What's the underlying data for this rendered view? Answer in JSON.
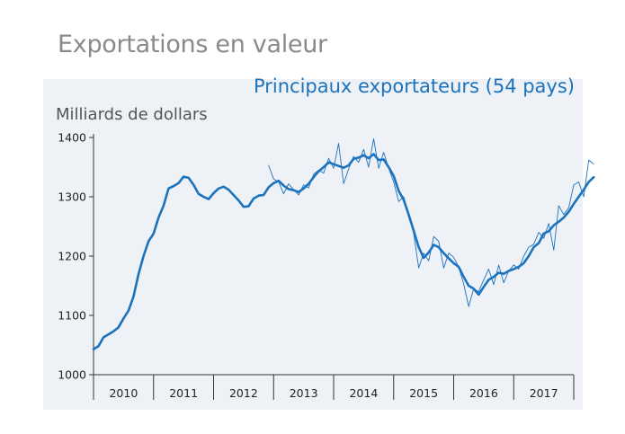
{
  "heading": "Exportations en valeur",
  "chart_data": {
    "type": "line",
    "title": "Principaux exportateurs (54 pays)",
    "ylabel": "Milliards de dollars",
    "xlabel": "",
    "ylim": [
      1000,
      1400
    ],
    "yticks": [
      1000,
      1100,
      1200,
      1300,
      1400
    ],
    "x_categories": [
      "2010",
      "2011",
      "2012",
      "2013",
      "2014",
      "2015",
      "2016",
      "2017"
    ],
    "xlim": [
      2010.0,
      2018.0
    ],
    "grid": false,
    "legend": "none",
    "series": [
      {
        "style": "thin",
        "color": "#1b73bd",
        "points": [
          [
            2012.917,
            1353
          ],
          [
            2013.0,
            1330
          ],
          [
            2013.083,
            1325
          ],
          [
            2013.167,
            1305
          ],
          [
            2013.25,
            1322
          ],
          [
            2013.333,
            1312
          ],
          [
            2013.417,
            1303
          ],
          [
            2013.5,
            1320
          ],
          [
            2013.583,
            1315
          ],
          [
            2013.667,
            1338
          ],
          [
            2013.75,
            1345
          ],
          [
            2013.833,
            1340
          ],
          [
            2013.917,
            1365
          ],
          [
            2014.0,
            1348
          ],
          [
            2014.083,
            1390
          ],
          [
            2014.167,
            1322
          ],
          [
            2014.25,
            1347
          ],
          [
            2014.333,
            1368
          ],
          [
            2014.417,
            1358
          ],
          [
            2014.5,
            1380
          ],
          [
            2014.583,
            1350
          ],
          [
            2014.667,
            1398
          ],
          [
            2014.75,
            1348
          ],
          [
            2014.833,
            1375
          ],
          [
            2014.917,
            1348
          ],
          [
            2015.0,
            1325
          ],
          [
            2015.083,
            1292
          ],
          [
            2015.167,
            1300
          ],
          [
            2015.25,
            1270
          ],
          [
            2015.333,
            1238
          ],
          [
            2015.417,
            1180
          ],
          [
            2015.5,
            1205
          ],
          [
            2015.583,
            1192
          ],
          [
            2015.667,
            1233
          ],
          [
            2015.75,
            1225
          ],
          [
            2015.833,
            1180
          ],
          [
            2015.917,
            1205
          ],
          [
            2016.0,
            1198
          ],
          [
            2016.083,
            1182
          ],
          [
            2016.167,
            1153
          ],
          [
            2016.25,
            1115
          ],
          [
            2016.333,
            1145
          ],
          [
            2016.417,
            1140
          ],
          [
            2016.5,
            1160
          ],
          [
            2016.583,
            1178
          ],
          [
            2016.667,
            1152
          ],
          [
            2016.75,
            1185
          ],
          [
            2016.833,
            1155
          ],
          [
            2016.917,
            1175
          ],
          [
            2017.0,
            1185
          ],
          [
            2017.083,
            1178
          ],
          [
            2017.167,
            1200
          ],
          [
            2017.25,
            1215
          ],
          [
            2017.333,
            1220
          ],
          [
            2017.417,
            1240
          ],
          [
            2017.5,
            1230
          ],
          [
            2017.583,
            1255
          ],
          [
            2017.667,
            1210
          ],
          [
            2017.75,
            1285
          ],
          [
            2017.833,
            1270
          ],
          [
            2017.917,
            1282
          ],
          [
            2018.0,
            1320
          ],
          [
            2018.083,
            1325
          ],
          [
            2018.167,
            1300
          ],
          [
            2018.25,
            1362
          ],
          [
            2018.333,
            1355
          ]
        ]
      },
      {
        "style": "thick",
        "color": "#1b73bd",
        "points": [
          [
            2010.0,
            1043
          ],
          [
            2010.083,
            1048
          ],
          [
            2010.167,
            1063
          ],
          [
            2010.25,
            1068
          ],
          [
            2010.333,
            1073
          ],
          [
            2010.417,
            1080
          ],
          [
            2010.5,
            1095
          ],
          [
            2010.583,
            1108
          ],
          [
            2010.667,
            1132
          ],
          [
            2010.75,
            1170
          ],
          [
            2010.833,
            1200
          ],
          [
            2010.917,
            1225
          ],
          [
            2011.0,
            1238
          ],
          [
            2011.083,
            1265
          ],
          [
            2011.167,
            1285
          ],
          [
            2011.25,
            1314
          ],
          [
            2011.333,
            1318
          ],
          [
            2011.417,
            1323
          ],
          [
            2011.5,
            1334
          ],
          [
            2011.583,
            1332
          ],
          [
            2011.667,
            1320
          ],
          [
            2011.75,
            1305
          ],
          [
            2011.833,
            1300
          ],
          [
            2011.917,
            1296
          ],
          [
            2012.0,
            1306
          ],
          [
            2012.083,
            1314
          ],
          [
            2012.167,
            1317
          ],
          [
            2012.25,
            1312
          ],
          [
            2012.333,
            1303
          ],
          [
            2012.417,
            1294
          ],
          [
            2012.5,
            1283
          ],
          [
            2012.583,
            1284
          ],
          [
            2012.667,
            1297
          ],
          [
            2012.75,
            1302
          ],
          [
            2012.833,
            1303
          ],
          [
            2012.917,
            1316
          ],
          [
            2013.0,
            1323
          ],
          [
            2013.083,
            1327
          ],
          [
            2013.167,
            1319
          ],
          [
            2013.25,
            1313
          ],
          [
            2013.333,
            1311
          ],
          [
            2013.417,
            1308
          ],
          [
            2013.5,
            1314
          ],
          [
            2013.583,
            1322
          ],
          [
            2013.667,
            1333
          ],
          [
            2013.75,
            1343
          ],
          [
            2013.833,
            1350
          ],
          [
            2013.917,
            1358
          ],
          [
            2014.0,
            1355
          ],
          [
            2014.083,
            1352
          ],
          [
            2014.167,
            1349
          ],
          [
            2014.25,
            1353
          ],
          [
            2014.333,
            1364
          ],
          [
            2014.417,
            1366
          ],
          [
            2014.5,
            1370
          ],
          [
            2014.583,
            1365
          ],
          [
            2014.667,
            1372
          ],
          [
            2014.75,
            1362
          ],
          [
            2014.833,
            1363
          ],
          [
            2014.917,
            1350
          ],
          [
            2015.0,
            1335
          ],
          [
            2015.083,
            1310
          ],
          [
            2015.167,
            1295
          ],
          [
            2015.25,
            1270
          ],
          [
            2015.333,
            1243
          ],
          [
            2015.417,
            1215
          ],
          [
            2015.5,
            1197
          ],
          [
            2015.583,
            1206
          ],
          [
            2015.667,
            1219
          ],
          [
            2015.75,
            1215
          ],
          [
            2015.833,
            1205
          ],
          [
            2015.917,
            1196
          ],
          [
            2016.0,
            1188
          ],
          [
            2016.083,
            1182
          ],
          [
            2016.167,
            1165
          ],
          [
            2016.25,
            1150
          ],
          [
            2016.333,
            1145
          ],
          [
            2016.417,
            1135
          ],
          [
            2016.5,
            1148
          ],
          [
            2016.583,
            1160
          ],
          [
            2016.667,
            1165
          ],
          [
            2016.75,
            1172
          ],
          [
            2016.833,
            1170
          ],
          [
            2016.917,
            1175
          ],
          [
            2017.0,
            1178
          ],
          [
            2017.083,
            1182
          ],
          [
            2017.167,
            1188
          ],
          [
            2017.25,
            1200
          ],
          [
            2017.333,
            1215
          ],
          [
            2017.417,
            1222
          ],
          [
            2017.5,
            1238
          ],
          [
            2017.583,
            1242
          ],
          [
            2017.667,
            1252
          ],
          [
            2017.75,
            1258
          ],
          [
            2017.833,
            1265
          ],
          [
            2017.917,
            1275
          ],
          [
            2018.0,
            1288
          ],
          [
            2018.083,
            1300
          ],
          [
            2018.167,
            1312
          ],
          [
            2018.25,
            1325
          ],
          [
            2018.333,
            1333
          ]
        ]
      }
    ]
  }
}
